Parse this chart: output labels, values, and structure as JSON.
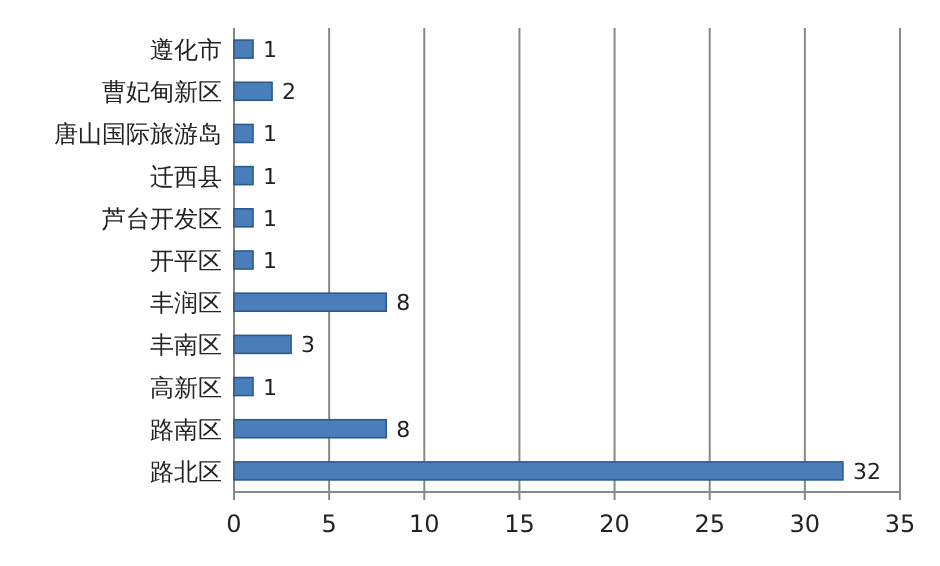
{
  "chart_data": {
    "type": "bar",
    "orientation": "horizontal",
    "categories": [
      "遵化市",
      "曹妃甸新区",
      "唐山国际旅游岛",
      "迁西县",
      "芦台开发区",
      "开平区",
      "丰润区",
      "丰南区",
      "高新区",
      "路南区",
      "路北区"
    ],
    "values": [
      1,
      2,
      1,
      1,
      1,
      1,
      8,
      3,
      1,
      8,
      32
    ],
    "color": "#4a7ebb",
    "xlim": [
      0,
      35
    ],
    "xticks": [
      0,
      5,
      10,
      15,
      20,
      25,
      30,
      35
    ],
    "grid": "x",
    "data_labels": true
  }
}
